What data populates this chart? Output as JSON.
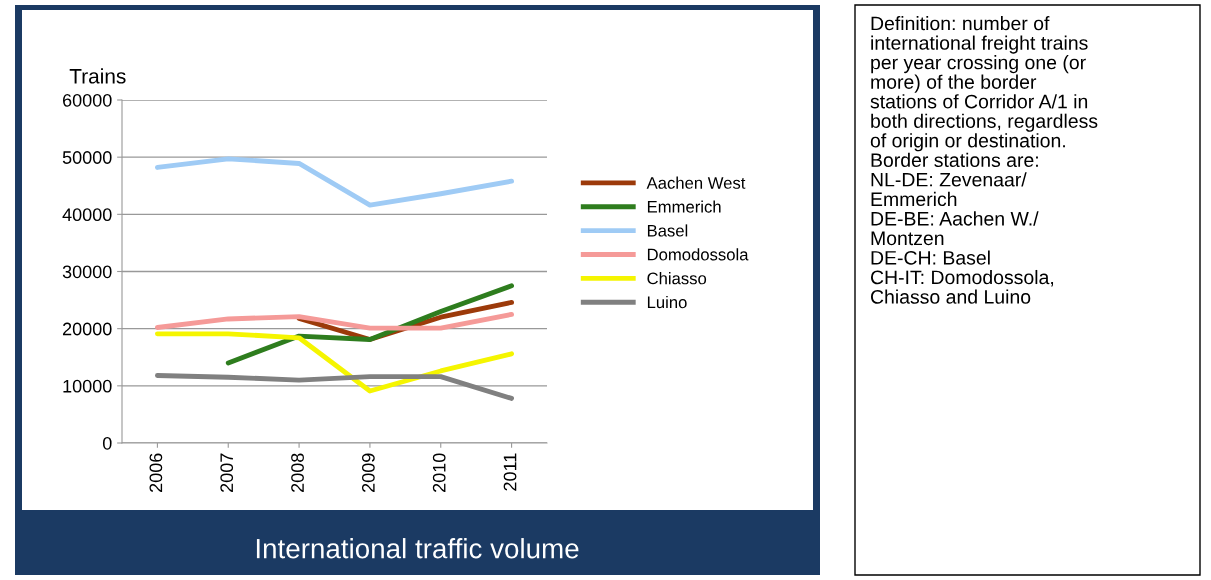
{
  "chart_data": {
    "type": "line",
    "ylabel": "Trains",
    "categories": [
      "2006",
      "2007",
      "2008",
      "2009",
      "2010",
      "2011"
    ],
    "series": [
      {
        "name": "Aachen West",
        "color": "#9c3a0a",
        "values": [
          null,
          null,
          21800,
          18100,
          22000,
          24600
        ]
      },
      {
        "name": "Emmerich",
        "color": "#2e7d1e",
        "values": [
          null,
          14000,
          18700,
          18100,
          23000,
          27500
        ]
      },
      {
        "name": "Basel",
        "color": "#9fcbf5",
        "values": [
          48200,
          49700,
          48900,
          41600,
          43600,
          45800
        ]
      },
      {
        "name": "Domodossola",
        "color": "#f59a98",
        "values": [
          20200,
          21700,
          22100,
          20100,
          20100,
          22500
        ]
      },
      {
        "name": "Chiasso",
        "color": "#f5f500",
        "values": [
          19100,
          19100,
          18400,
          9100,
          12600,
          15600
        ]
      },
      {
        "name": "Luino",
        "color": "#808080",
        "values": [
          11800,
          11500,
          11000,
          11600,
          11600,
          7800
        ]
      }
    ],
    "ylim": [
      0,
      60000
    ],
    "yticks": [
      0,
      10000,
      20000,
      30000,
      40000,
      50000,
      60000
    ],
    "grid": "y",
    "legend": "right",
    "marker": "none",
    "line_style": "solid",
    "annotations": [
      "International traffic volume",
      "Definition: number of\ninternational freight trains\nper year crossing one (or\nmore) of the border\nstations of Corridor A/1 in\nboth directions, regardless\nof origin or destination.\nBorder stations are:\nNL-DE: Zevenaar/\nEmmerich\nDE-BE: Aachen W./\nMontzen\nDE-CH: Basel\nCH-IT: Domodossola,\nChiasso and Luino"
    ]
  }
}
